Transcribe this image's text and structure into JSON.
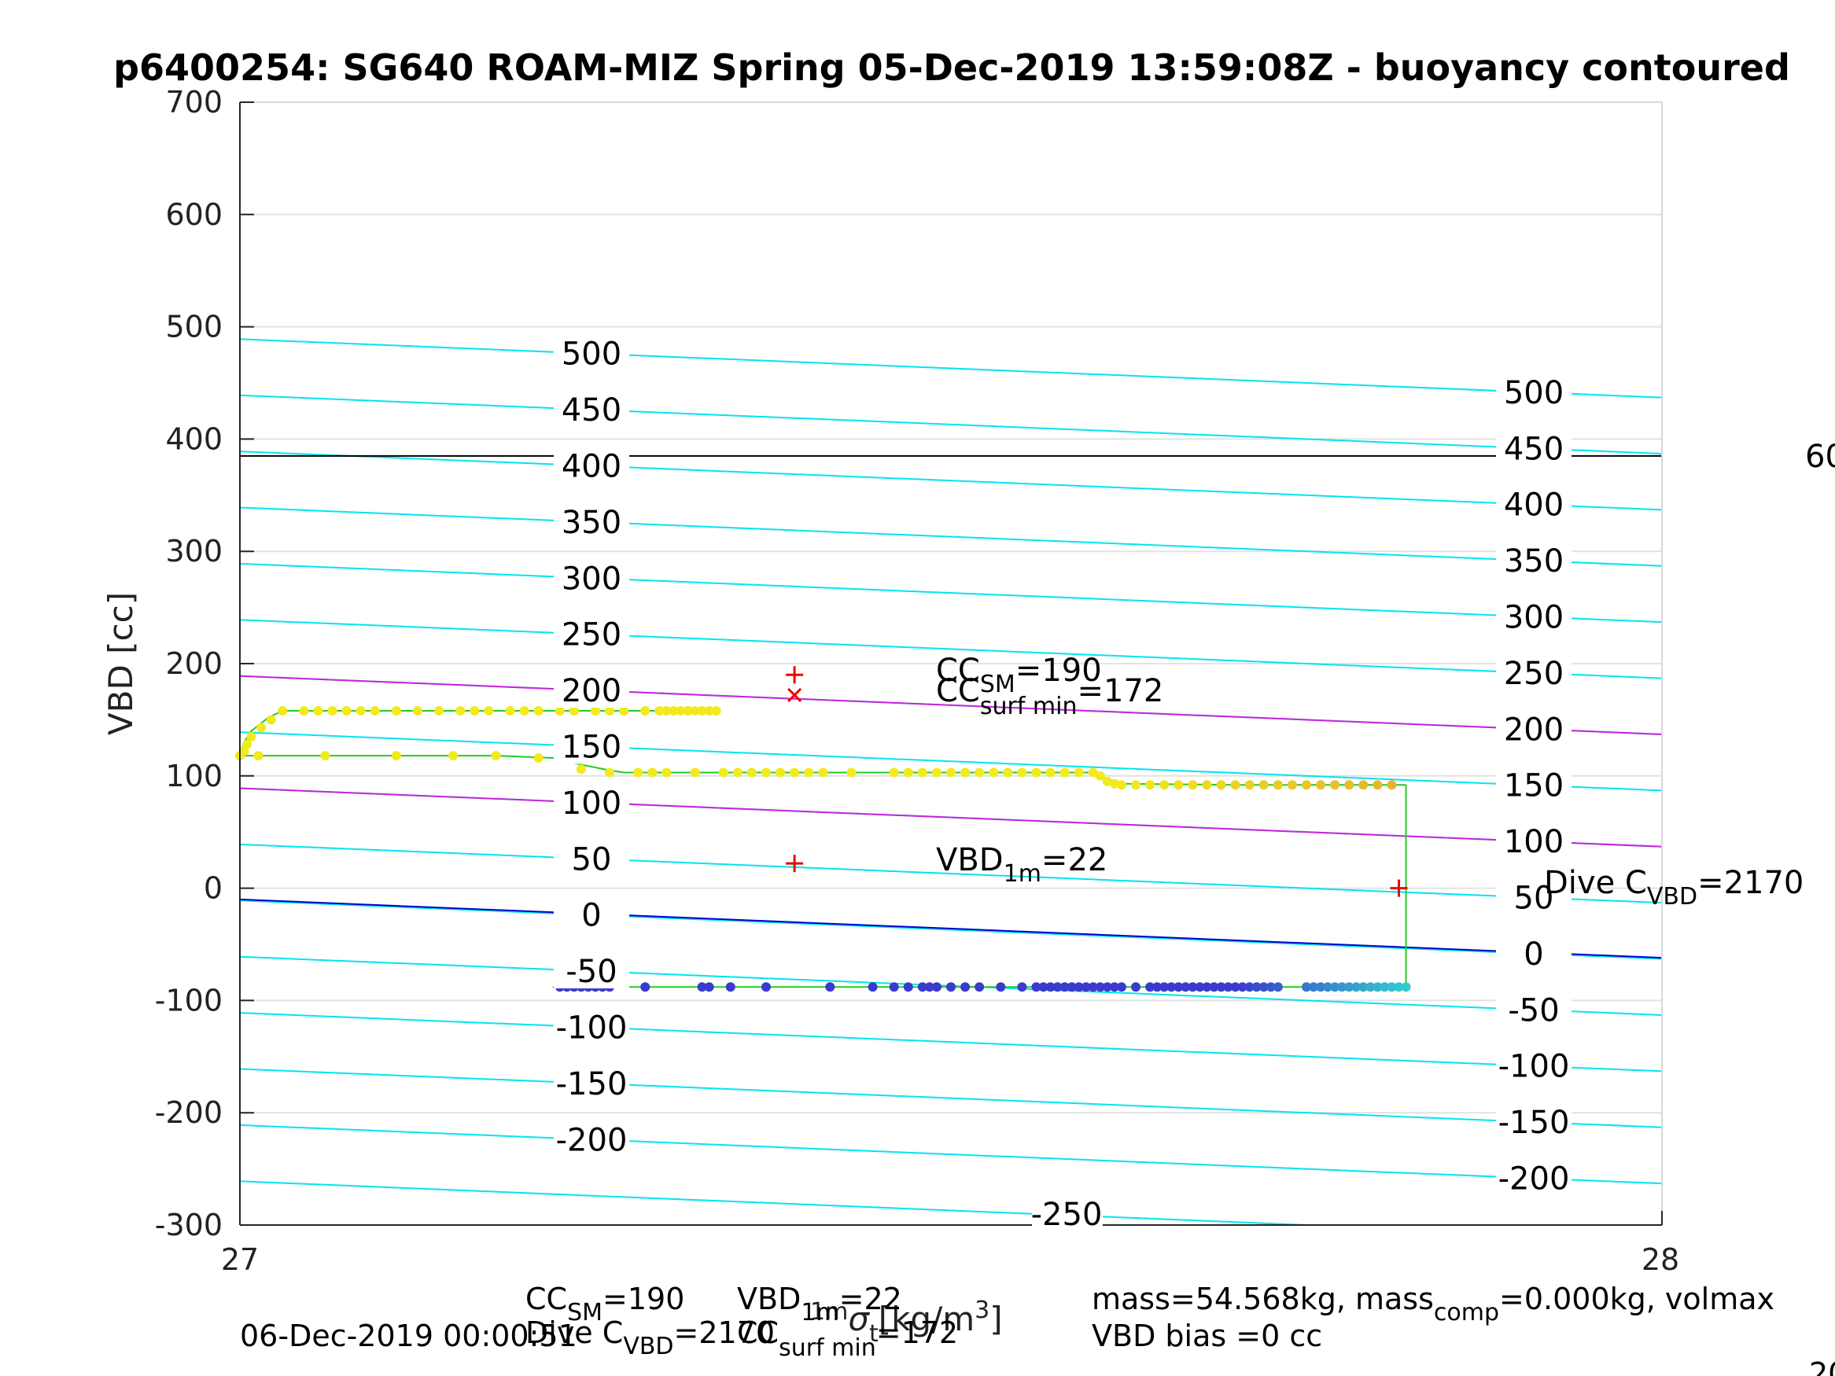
{
  "page": {
    "title": "p6400254: SG640 ROAM-MIZ Spring 05-Dec-2019 13:59:08Z - buoyancy contoured",
    "date_footer": "06-Dec-2019 00:00:51"
  },
  "chart_data": {
    "type": "scatter",
    "title": "p6400254: SG640 ROAM-MIZ Spring 05-Dec-2019 13:59:08Z - buoyancy contoured",
    "ylabel": "VBD [cc]",
    "xlabel_parts": {
      "sigma": "σ",
      "sub": "t",
      "sup": "1m",
      "units": "[kg/m",
      "units_sup": "3",
      "close": "]"
    },
    "xlim": [
      27,
      28
    ],
    "ylim": [
      -300,
      700
    ],
    "xticks": [
      27,
      28
    ],
    "yticks": [
      -300,
      -200,
      -100,
      0,
      100,
      200,
      300,
      400,
      500,
      600,
      700
    ],
    "grid": true,
    "colors": {
      "contour": "#00e5f0",
      "magenta": "#cc22dd",
      "zero": "#0000cc",
      "horizontal": "#000000",
      "path": "#22cc22",
      "marker": "#ee0000",
      "climb_point": "#f2ea1c",
      "climb_end": "#e6b030",
      "dive_point": "#3a3acc",
      "dive_end": "#33cccc"
    },
    "contours": {
      "slope_per_sigma": -52,
      "cyan_levels": [
        -250,
        -200,
        -150,
        -100,
        -50,
        0,
        50,
        100,
        150,
        200,
        250,
        300,
        350,
        400,
        450,
        500
      ],
      "magenta_levels": [
        100,
        200
      ],
      "zero_level": 0,
      "zero_offset": -10,
      "cyan_offset": -11,
      "magenta_offset": -11,
      "left_labels": [
        "500",
        "450",
        "400",
        "350",
        "300",
        "250",
        "200",
        "150",
        "100",
        "50",
        "0",
        "-50",
        "-100",
        "-150",
        "-200"
      ],
      "right_labels": [
        "500",
        "450",
        "400",
        "350",
        "300",
        "250",
        "200",
        "150",
        "100",
        "50",
        "0",
        "-50",
        "-100",
        "-150",
        "-200"
      ],
      "bottom_label": "-250"
    },
    "horizontal_line": {
      "y": 385,
      "label": "60"
    },
    "climb_path": [
      [
        27.0,
        118
      ],
      [
        27.003,
        130
      ],
      [
        27.008,
        140
      ],
      [
        27.02,
        152
      ],
      [
        27.03,
        158
      ],
      [
        27.05,
        158
      ],
      [
        27.1,
        158
      ],
      [
        27.15,
        158
      ],
      [
        27.2,
        158
      ],
      [
        27.25,
        158
      ],
      [
        27.3,
        158
      ],
      [
        27.32,
        158
      ]
    ],
    "climb_points": [
      [
        27.003,
        122
      ],
      [
        27.005,
        128
      ],
      [
        27.008,
        135
      ],
      [
        27.015,
        143
      ],
      [
        27.022,
        150
      ],
      [
        27.03,
        158
      ],
      [
        27.045,
        158
      ],
      [
        27.055,
        158
      ],
      [
        27.065,
        158
      ],
      [
        27.075,
        158
      ],
      [
        27.085,
        158
      ],
      [
        27.095,
        158
      ],
      [
        27.11,
        158
      ],
      [
        27.125,
        158
      ],
      [
        27.14,
        158
      ],
      [
        27.155,
        158
      ],
      [
        27.165,
        158
      ],
      [
        27.175,
        158
      ],
      [
        27.19,
        158
      ],
      [
        27.2,
        158
      ],
      [
        27.21,
        158
      ],
      [
        27.225,
        158
      ],
      [
        27.235,
        158
      ],
      [
        27.25,
        158
      ],
      [
        27.26,
        158
      ],
      [
        27.27,
        158
      ],
      [
        27.285,
        158
      ],
      [
        27.295,
        158
      ],
      [
        27.3,
        158
      ],
      [
        27.305,
        158
      ],
      [
        27.31,
        158
      ],
      [
        27.315,
        158
      ],
      [
        27.32,
        158
      ],
      [
        27.325,
        158
      ],
      [
        27.33,
        158
      ],
      [
        27.335,
        158
      ]
    ],
    "mid_path": [
      [
        27.0,
        118
      ],
      [
        27.15,
        118
      ],
      [
        27.18,
        118
      ],
      [
        27.22,
        116
      ],
      [
        27.24,
        110
      ],
      [
        27.26,
        105
      ],
      [
        27.27,
        103
      ],
      [
        27.4,
        103
      ],
      [
        27.5,
        103
      ],
      [
        27.6,
        103
      ],
      [
        27.61,
        97
      ],
      [
        27.62,
        93
      ],
      [
        27.7,
        92
      ],
      [
        27.8,
        92
      ],
      [
        27.82,
        92
      ]
    ],
    "mid_points": [
      [
        27.0,
        118
      ],
      [
        27.013,
        118
      ],
      [
        27.06,
        118
      ],
      [
        27.11,
        118
      ],
      [
        27.15,
        118
      ],
      [
        27.18,
        118
      ],
      [
        27.21,
        116
      ],
      [
        27.24,
        106
      ],
      [
        27.26,
        103
      ],
      [
        27.28,
        103
      ],
      [
        27.29,
        103
      ],
      [
        27.3,
        103
      ],
      [
        27.32,
        103
      ],
      [
        27.34,
        103
      ],
      [
        27.35,
        103
      ],
      [
        27.36,
        103
      ],
      [
        27.37,
        103
      ],
      [
        27.38,
        103
      ],
      [
        27.39,
        103
      ],
      [
        27.4,
        103
      ],
      [
        27.41,
        103
      ],
      [
        27.43,
        103
      ],
      [
        27.46,
        103
      ],
      [
        27.47,
        103
      ],
      [
        27.48,
        103
      ],
      [
        27.49,
        103
      ],
      [
        27.5,
        103
      ],
      [
        27.51,
        103
      ],
      [
        27.52,
        103
      ],
      [
        27.53,
        103
      ],
      [
        27.54,
        103
      ],
      [
        27.55,
        103
      ],
      [
        27.56,
        103
      ],
      [
        27.57,
        103
      ],
      [
        27.58,
        103
      ],
      [
        27.59,
        103
      ],
      [
        27.6,
        103
      ],
      [
        27.605,
        100
      ],
      [
        27.61,
        95
      ],
      [
        27.615,
        93
      ],
      [
        27.62,
        92
      ],
      [
        27.63,
        92
      ],
      [
        27.64,
        92
      ],
      [
        27.65,
        92
      ],
      [
        27.66,
        92
      ],
      [
        27.67,
        92
      ],
      [
        27.68,
        92
      ],
      [
        27.69,
        92
      ],
      [
        27.7,
        92
      ],
      [
        27.71,
        92
      ],
      [
        27.72,
        92
      ],
      [
        27.73,
        92
      ],
      [
        27.74,
        92
      ],
      [
        27.75,
        92
      ],
      [
        27.76,
        92
      ],
      [
        27.77,
        92
      ],
      [
        27.78,
        92
      ],
      [
        27.79,
        92
      ],
      [
        27.8,
        92
      ],
      [
        27.81,
        92
      ]
    ],
    "dive_path": [
      [
        27.22,
        -88
      ],
      [
        27.4,
        -88
      ],
      [
        27.6,
        -88
      ],
      [
        27.81,
        -88
      ],
      [
        27.82,
        -88
      ],
      [
        27.82,
        92
      ]
    ],
    "dive_points": [
      [
        27.225,
        -88
      ],
      [
        27.23,
        -88
      ],
      [
        27.235,
        -88
      ],
      [
        27.24,
        -88
      ],
      [
        27.245,
        -88
      ],
      [
        27.25,
        -88
      ],
      [
        27.255,
        -88
      ],
      [
        27.26,
        -88
      ],
      [
        27.285,
        -88
      ],
      [
        27.325,
        -88
      ],
      [
        27.33,
        -88
      ],
      [
        27.345,
        -88
      ],
      [
        27.37,
        -88
      ],
      [
        27.415,
        -88
      ],
      [
        27.445,
        -88
      ],
      [
        27.46,
        -88
      ],
      [
        27.47,
        -88
      ],
      [
        27.48,
        -88
      ],
      [
        27.485,
        -88
      ],
      [
        27.49,
        -88
      ],
      [
        27.5,
        -88
      ],
      [
        27.51,
        -88
      ],
      [
        27.52,
        -88
      ],
      [
        27.535,
        -88
      ],
      [
        27.55,
        -88
      ],
      [
        27.56,
        -88
      ],
      [
        27.565,
        -88
      ],
      [
        27.57,
        -88
      ],
      [
        27.575,
        -88
      ],
      [
        27.58,
        -88
      ],
      [
        27.585,
        -88
      ],
      [
        27.59,
        -88
      ],
      [
        27.595,
        -88
      ],
      [
        27.6,
        -88
      ],
      [
        27.605,
        -88
      ],
      [
        27.61,
        -88
      ],
      [
        27.615,
        -88
      ],
      [
        27.62,
        -88
      ],
      [
        27.63,
        -88
      ],
      [
        27.64,
        -88
      ],
      [
        27.645,
        -88
      ],
      [
        27.65,
        -88
      ],
      [
        27.655,
        -88
      ],
      [
        27.66,
        -88
      ],
      [
        27.665,
        -88
      ],
      [
        27.67,
        -88
      ],
      [
        27.675,
        -88
      ],
      [
        27.68,
        -88
      ],
      [
        27.685,
        -88
      ],
      [
        27.69,
        -88
      ],
      [
        27.695,
        -88
      ],
      [
        27.7,
        -88
      ],
      [
        27.705,
        -88
      ],
      [
        27.71,
        -88
      ],
      [
        27.715,
        -88
      ],
      [
        27.72,
        -88
      ],
      [
        27.725,
        -88
      ],
      [
        27.73,
        -88
      ],
      [
        27.75,
        -88
      ],
      [
        27.755,
        -88
      ],
      [
        27.76,
        -88
      ],
      [
        27.765,
        -88
      ],
      [
        27.77,
        -88
      ],
      [
        27.775,
        -88
      ],
      [
        27.78,
        -88
      ],
      [
        27.785,
        -88
      ],
      [
        27.79,
        -88
      ],
      [
        27.795,
        -88
      ],
      [
        27.8,
        -88
      ],
      [
        27.805,
        -88
      ],
      [
        27.81,
        -88
      ],
      [
        27.815,
        -88
      ],
      [
        27.82,
        -88
      ]
    ],
    "markers": [
      {
        "type": "plus",
        "x": 27.39,
        "y": 190
      },
      {
        "type": "cross",
        "x": 27.39,
        "y": 172
      },
      {
        "type": "plus",
        "x": 27.39,
        "y": 22
      },
      {
        "type": "plus",
        "x": 27.815,
        "y": 0
      }
    ],
    "annotations": {
      "cc_sm": {
        "main": "CC",
        "sub": "SM",
        "value": "=190"
      },
      "cc_surf": {
        "main": "CC",
        "sub": "surf min",
        "value": "=172"
      },
      "vbd_1m": {
        "main": "VBD",
        "sub": "1m",
        "value": "=22"
      },
      "dive_c": {
        "main": "Dive C",
        "sub": "VBD",
        "value": "=2170"
      }
    },
    "footer": {
      "cc_sm": {
        "main": "CC",
        "sub": "SM",
        "value": "=190"
      },
      "vbd_1m": {
        "main": "VBD",
        "sub": "1m",
        "value": "=22"
      },
      "dive_c": {
        "main": "Dive C",
        "sub": "VBD",
        "value": "=2170"
      },
      "cc_surf": {
        "main": "CC",
        "sub": "surf min",
        "value": "=172"
      },
      "mass": {
        "text": "mass=54.568kg, mass",
        "sub": "comp",
        "value": "=0.000kg, volmax"
      },
      "bias": "VBD bias =0 cc",
      "edge_number": "20"
    }
  }
}
